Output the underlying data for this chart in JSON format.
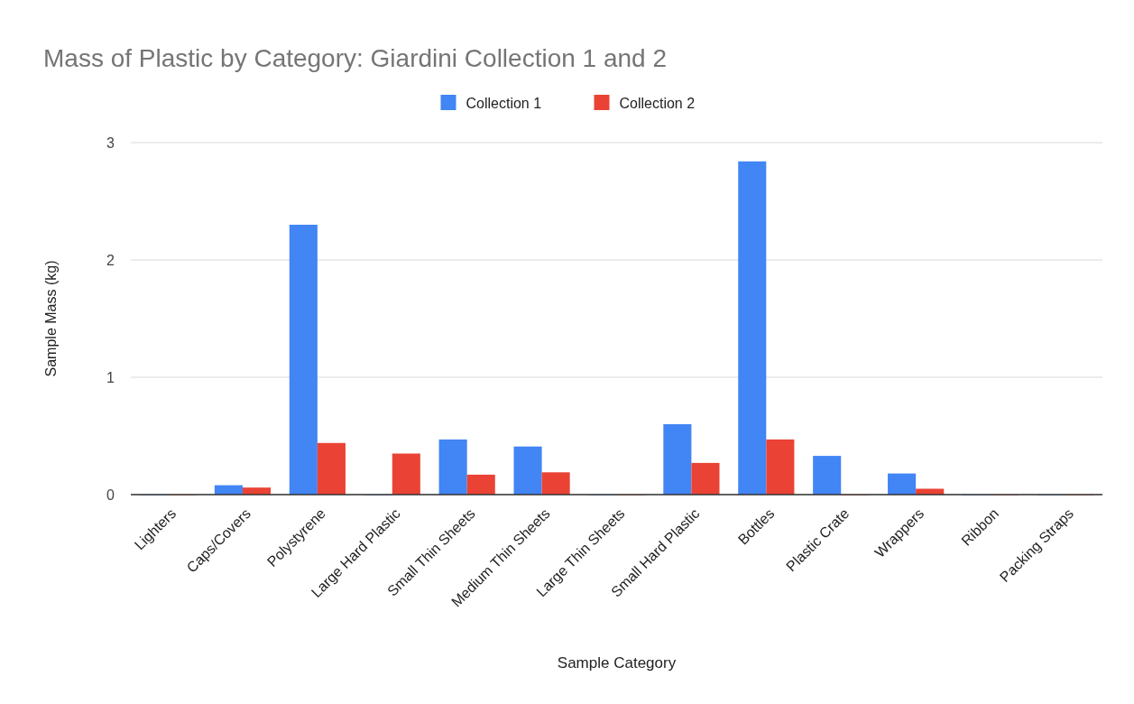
{
  "chart_data": {
    "type": "bar",
    "title": "Mass of Plastic by Category: Giardini Collection 1 and 2",
    "xlabel": "Sample Category",
    "ylabel": "Sample Mass (kg)",
    "categories": [
      "Lighters",
      "Caps/Covers",
      "Polystyrene",
      "Large Hard Plastic",
      "Small Thin Sheets",
      "Medium Thin Sheets",
      "Large Thin Sheets",
      "Small Hard Plastic",
      "Bottles",
      "Plastic Crate",
      "Wrappers",
      "Ribbon",
      "Packing Straps"
    ],
    "series": [
      {
        "name": "Collection 1",
        "color": "#4285f4",
        "values": [
          0,
          0.08,
          2.3,
          0,
          0.47,
          0.41,
          0,
          0.6,
          2.84,
          0.33,
          0.18,
          0,
          0
        ]
      },
      {
        "name": "Collection 2",
        "color": "#ea4335",
        "values": [
          0,
          0.06,
          0.44,
          0.35,
          0.17,
          0.19,
          0,
          0.27,
          0.47,
          0,
          0.05,
          0,
          0
        ]
      }
    ],
    "ylim": [
      0,
      3
    ],
    "yticks": [
      0,
      1,
      2,
      3
    ],
    "grid": "y",
    "legend": "top"
  }
}
